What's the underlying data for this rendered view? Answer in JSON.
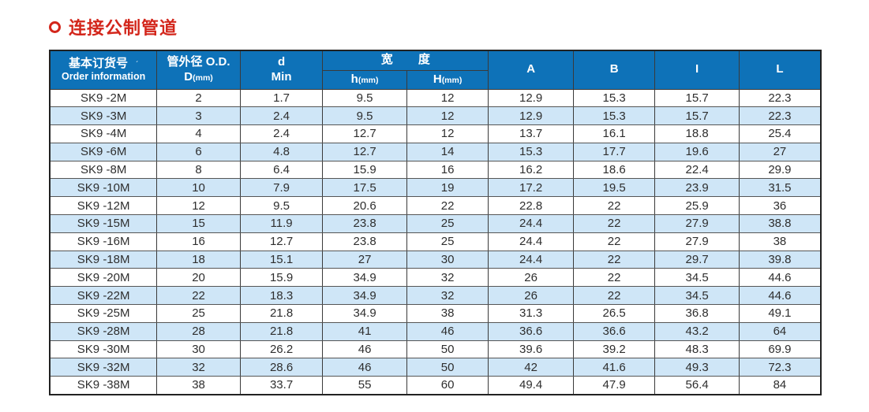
{
  "page": {
    "title": "连接公制管道"
  },
  "colors": {
    "header_blue": "#0e72b8",
    "stripe_blue": "#cfe6f7",
    "title_red": "#d3261b",
    "border": "#3a3a3a"
  },
  "table": {
    "header": {
      "order_cn": "基本订货号",
      "order_mark": "ˊ",
      "order_en": "Order information",
      "od_cn": "管外径 O.D.",
      "od_main": "D",
      "od_unit": "(mm)",
      "d_line1": "d",
      "d_line2": "Min",
      "width_cn": "宽  度",
      "h_main": "h",
      "h_unit": "(mm)",
      "H_main": "H",
      "H_unit": "(mm)",
      "col_a": "A",
      "col_b": "B",
      "col_i": "I",
      "col_l": "L"
    },
    "column_keys": [
      "order",
      "od-d",
      "d-min",
      "h-mm",
      "H-mm",
      "a",
      "b",
      "i",
      "l"
    ],
    "rows": [
      [
        "SK9 -2M",
        "2",
        "1.7",
        "9.5",
        "12",
        "12.9",
        "15.3",
        "15.7",
        "22.3"
      ],
      [
        "SK9 -3M",
        "3",
        "2.4",
        "9.5",
        "12",
        "12.9",
        "15.3",
        "15.7",
        "22.3"
      ],
      [
        "SK9 -4M",
        "4",
        "2.4",
        "12.7",
        "12",
        "13.7",
        "16.1",
        "18.8",
        "25.4"
      ],
      [
        "SK9 -6M",
        "6",
        "4.8",
        "12.7",
        "14",
        "15.3",
        "17.7",
        "19.6",
        "27"
      ],
      [
        "SK9 -8M",
        "8",
        "6.4",
        "15.9",
        "16",
        "16.2",
        "18.6",
        "22.4",
        "29.9"
      ],
      [
        "SK9 -10M",
        "10",
        "7.9",
        "17.5",
        "19",
        "17.2",
        "19.5",
        "23.9",
        "31.5"
      ],
      [
        "SK9 -12M",
        "12",
        "9.5",
        "20.6",
        "22",
        "22.8",
        "22",
        "25.9",
        "36"
      ],
      [
        "SK9 -15M",
        "15",
        "11.9",
        "23.8",
        "25",
        "24.4",
        "22",
        "27.9",
        "38.8"
      ],
      [
        "SK9 -16M",
        "16",
        "12.7",
        "23.8",
        "25",
        "24.4",
        "22",
        "27.9",
        "38"
      ],
      [
        "SK9 -18M",
        "18",
        "15.1",
        "27",
        "30",
        "24.4",
        "22",
        "29.7",
        "39.8"
      ],
      [
        "SK9 -20M",
        "20",
        "15.9",
        "34.9",
        "32",
        "26",
        "22",
        "34.5",
        "44.6"
      ],
      [
        "SK9 -22M",
        "22",
        "18.3",
        "34.9",
        "32",
        "26",
        "22",
        "34.5",
        "44.6"
      ],
      [
        "SK9 -25M",
        "25",
        "21.8",
        "34.9",
        "38",
        "31.3",
        "26.5",
        "36.8",
        "49.1"
      ],
      [
        "SK9 -28M",
        "28",
        "21.8",
        "41",
        "46",
        "36.6",
        "36.6",
        "43.2",
        "64"
      ],
      [
        "SK9 -30M",
        "30",
        "26.2",
        "46",
        "50",
        "39.6",
        "39.2",
        "48.3",
        "69.9"
      ],
      [
        "SK9 -32M",
        "32",
        "28.6",
        "46",
        "50",
        "42",
        "41.6",
        "49.3",
        "72.3"
      ],
      [
        "SK9 -38M",
        "38",
        "33.7",
        "55",
        "60",
        "49.4",
        "47.9",
        "56.4",
        "84"
      ]
    ]
  }
}
